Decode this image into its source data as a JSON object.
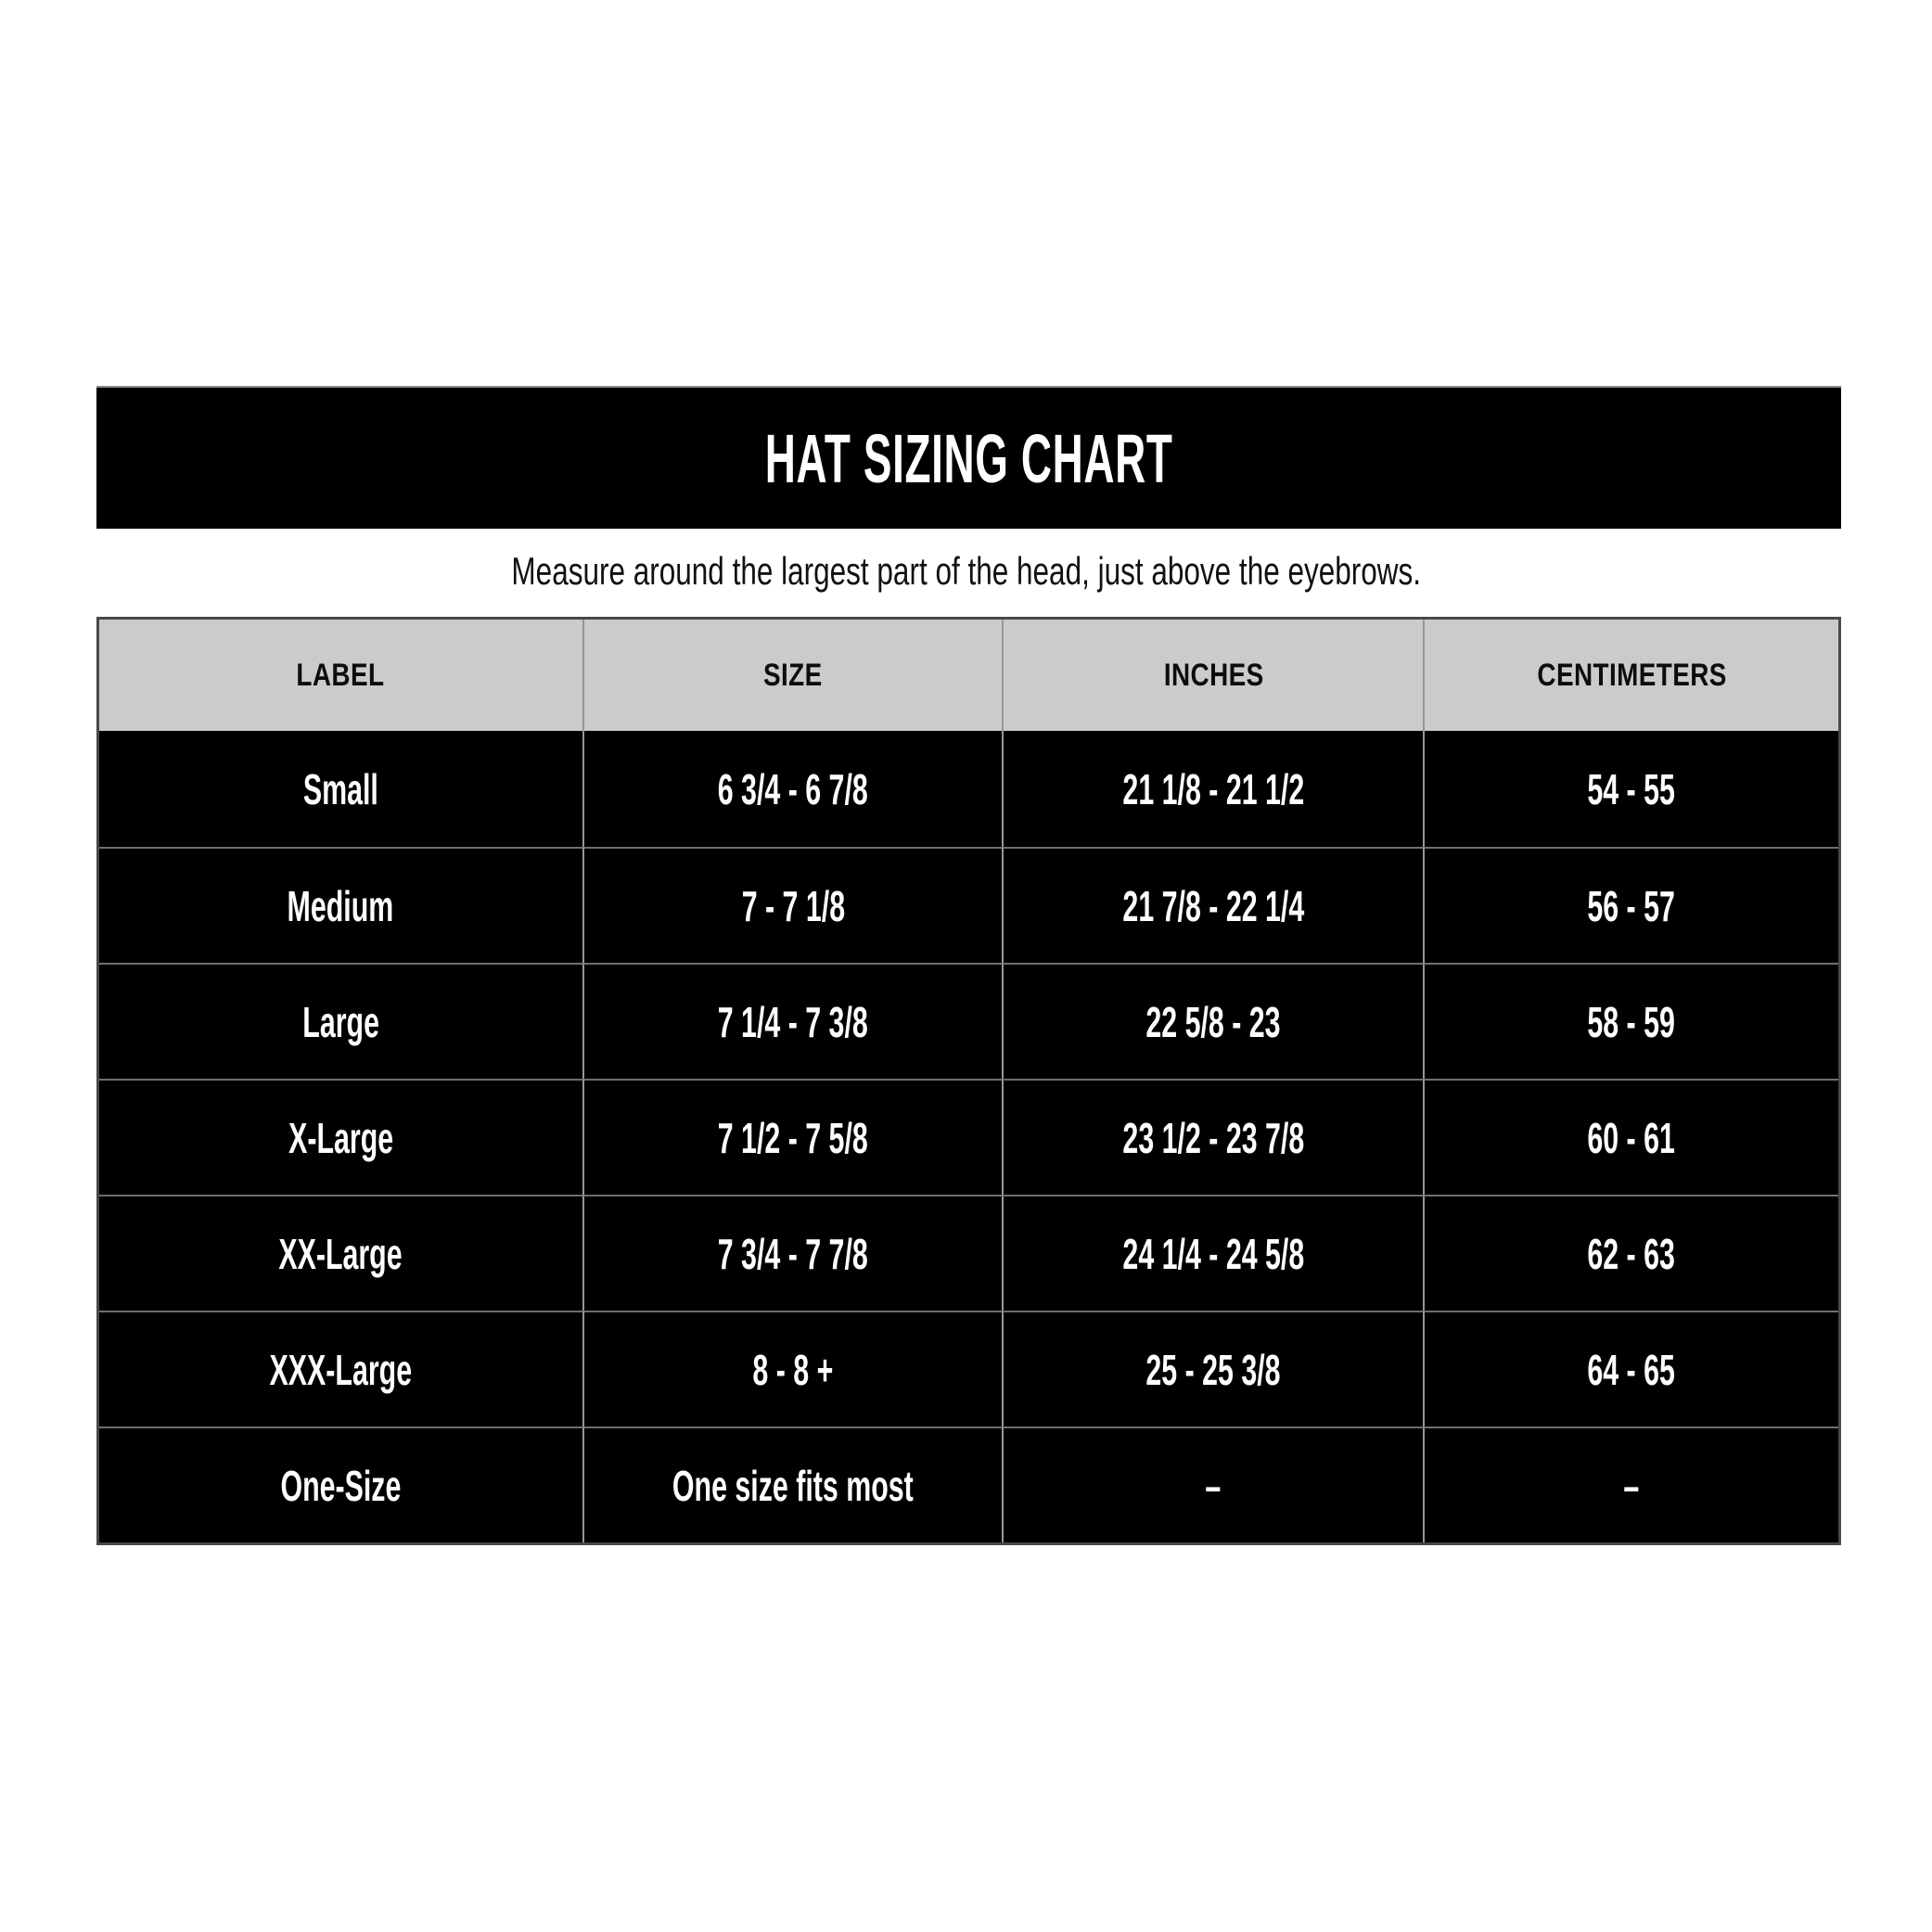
{
  "banner": {
    "title": "HAT SIZING CHART"
  },
  "subtitle": "Measure around the largest part of the head, just above the eyebrows.",
  "chart_data": {
    "type": "table",
    "title": "HAT SIZING CHART",
    "columns": [
      "LABEL",
      "SIZE",
      "INCHES",
      "CENTIMETERS"
    ],
    "rows": [
      [
        "Small",
        "6 3/4 - 6 7/8",
        "21 1/8 - 21 1/2",
        "54 - 55"
      ],
      [
        "Medium",
        "7 - 7 1/8",
        "21 7/8 - 22 1/4",
        "56 - 57"
      ],
      [
        "Large",
        "7 1/4 - 7 3/8",
        "22 5/8 - 23",
        "58 - 59"
      ],
      [
        "X-Large",
        "7 1/2 - 7 5/8",
        "23 1/2 - 23 7/8",
        "60 - 61"
      ],
      [
        "XX-Large",
        "7 3/4 - 7 7/8",
        "24 1/4 - 24 5/8",
        "62 - 63"
      ],
      [
        "XXX-Large",
        "8 - 8 +",
        "25 - 25 3/8",
        "64 - 65"
      ],
      [
        "One-Size",
        "One size fits most",
        "–",
        "–"
      ]
    ]
  },
  "colors": {
    "page_bg": "#ffffff",
    "banner_bg": "#000000",
    "banner_text": "#ffffff",
    "header_bg": "#cbcbcb",
    "header_text": "#0d0d0d",
    "row_bg": "#000000",
    "row_text": "#ffffff",
    "grid_line": "#979797",
    "row_line": "#6f6f6f",
    "outer_border": "#484848"
  }
}
